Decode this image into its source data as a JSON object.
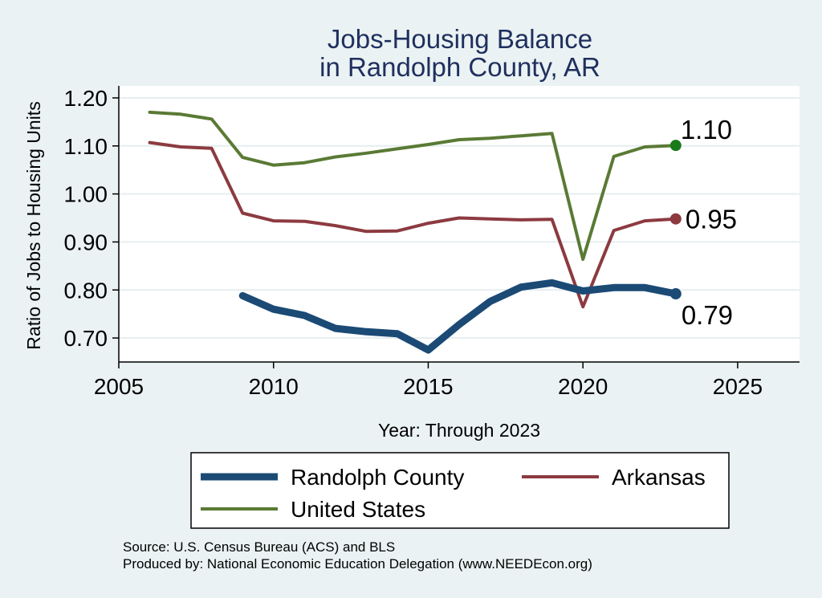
{
  "chart_data": {
    "type": "line",
    "title": [
      "Jobs-Housing Balance",
      "in Randolph County, AR"
    ],
    "xlabel": "Year: Through 2023",
    "ylabel": "Ratio of Jobs to Housing Units",
    "xlim": [
      2005,
      2027
    ],
    "ylim": [
      0.65,
      1.225
    ],
    "xticks": [
      2005,
      2010,
      2015,
      2020,
      2025
    ],
    "xtick_labels": [
      "2005",
      "2010",
      "2015",
      "2020",
      "2025"
    ],
    "yticks": [
      0.7,
      0.8,
      0.9,
      1.0,
      1.1,
      1.2
    ],
    "ytick_labels": [
      "0.70",
      "0.80",
      "0.90",
      "1.00",
      "1.10",
      "1.20"
    ],
    "grid": true,
    "legend_position": "bottom",
    "series": [
      {
        "name": "Randolph County",
        "color": "#1b4a75",
        "x": [
          2009,
          2010,
          2011,
          2012,
          2013,
          2014,
          2015,
          2016,
          2017,
          2018,
          2019,
          2020,
          2021,
          2022,
          2023
        ],
        "values": [
          0.788,
          0.76,
          0.747,
          0.72,
          0.713,
          0.709,
          0.675,
          0.728,
          0.776,
          0.806,
          0.815,
          0.798,
          0.805,
          0.805,
          0.792
        ],
        "end_label": "0.79"
      },
      {
        "name": "Arkansas",
        "color": "#8c3a40",
        "x": [
          2006,
          2007,
          2008,
          2009,
          2010,
          2011,
          2012,
          2013,
          2014,
          2015,
          2016,
          2017,
          2018,
          2019,
          2020,
          2021,
          2022,
          2023
        ],
        "values": [
          1.107,
          1.098,
          1.095,
          0.96,
          0.944,
          0.943,
          0.934,
          0.922,
          0.923,
          0.939,
          0.95,
          0.948,
          0.946,
          0.947,
          0.765,
          0.924,
          0.944,
          0.948
        ],
        "end_label": "0.95"
      },
      {
        "name": "United States",
        "color": "#5a7a35",
        "x": [
          2006,
          2007,
          2008,
          2009,
          2010,
          2011,
          2012,
          2013,
          2014,
          2015,
          2016,
          2017,
          2018,
          2019,
          2020,
          2021,
          2022,
          2023
        ],
        "values": [
          1.17,
          1.166,
          1.156,
          1.076,
          1.06,
          1.065,
          1.077,
          1.085,
          1.094,
          1.103,
          1.113,
          1.116,
          1.121,
          1.126,
          0.864,
          1.078,
          1.098,
          1.101
        ],
        "end_label": "1.10"
      }
    ],
    "source_lines": [
      "Source: U.S. Census Bureau (ACS) and BLS",
      "Produced by: National Economic Education Delegation (www.NEEDEcon.org)"
    ]
  }
}
